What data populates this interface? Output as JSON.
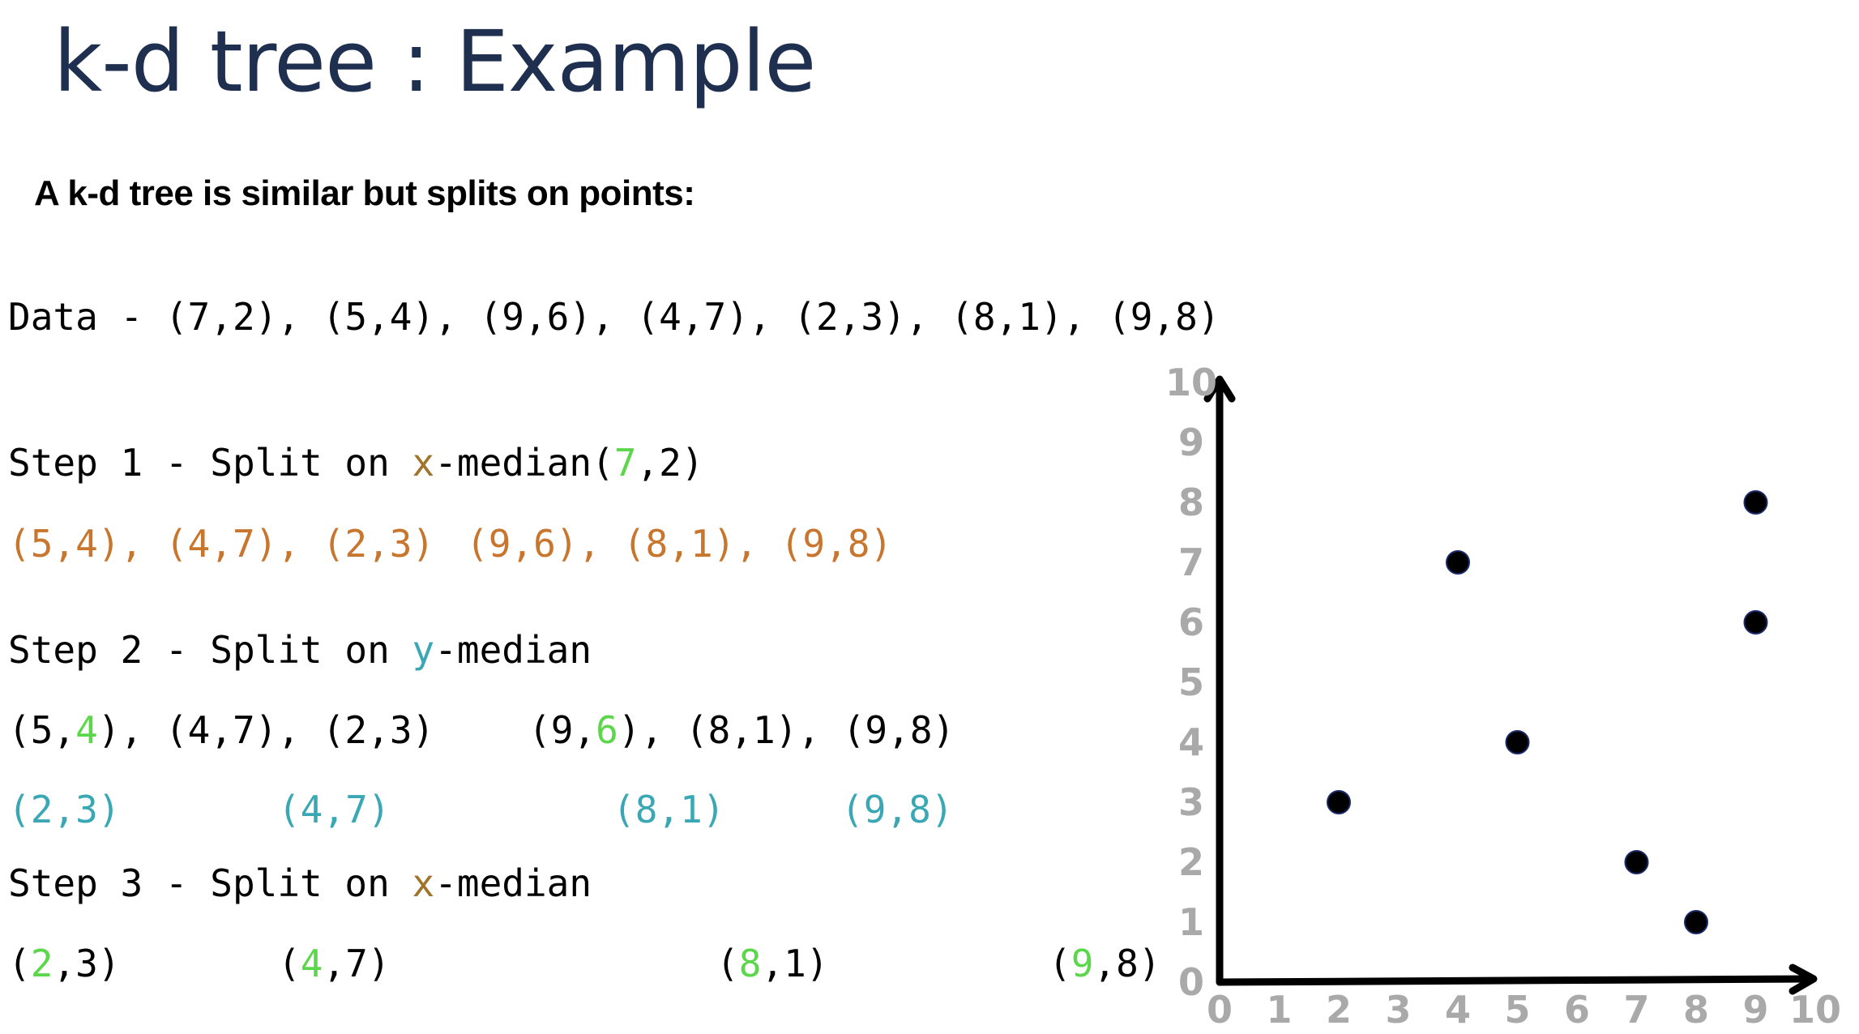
{
  "title": "k-d tree : Example",
  "subtitle": "A k-d tree is similar but splits on points:",
  "data_line": "Data - (7,2), (5,4), (9,6), (4,7), (2,3), (8,1), (9,8)",
  "step1": {
    "prefix": "Step 1 - Split on ",
    "axis": "x",
    "suffix": "-median",
    "median_open": "(",
    "median_key": "7",
    "median_rest": ",2)",
    "left_group": "(5,4), (4,7), (2,3)",
    "right_group": "(9,6), (8,1), (9,8)"
  },
  "step2": {
    "prefix": "Step 2 - Split on ",
    "axis": "y",
    "suffix": "-median",
    "left_open": "(5,",
    "left_key": "4",
    "left_rest": "), (4,7), (2,3)",
    "right_open": "(9,",
    "right_key": "6",
    "right_rest": "), (8,1), (9,8)",
    "leaves": [
      "(2,3)",
      "(4,7)",
      "(8,1)",
      "(9,8)"
    ]
  },
  "step3": {
    "prefix": "Step 3 - Split on ",
    "axis": "x",
    "suffix": "-median",
    "nodes": [
      {
        "open": "(",
        "key": "2",
        "rest": ",3)"
      },
      {
        "open": "(",
        "key": "4",
        "rest": ",7)"
      },
      {
        "open": "(",
        "key": "8",
        "rest": ",1)"
      },
      {
        "open": "(",
        "key": "9",
        "rest": ",8)"
      }
    ]
  },
  "colors": {
    "title": "#1f2f4f",
    "orange": "#c8762e",
    "axis_brown": "#a0742a",
    "teal": "#3aa8b4",
    "green": "#5cd64a",
    "tick_gray": "#a9a9a9"
  },
  "chart_data": {
    "type": "scatter",
    "x_ticks": [
      "0",
      "1",
      "2",
      "3",
      "4",
      "5",
      "6",
      "7",
      "8",
      "9",
      "10"
    ],
    "y_ticks": [
      "0",
      "1",
      "2",
      "3",
      "4",
      "5",
      "6",
      "7",
      "8",
      "9",
      "10"
    ],
    "xlim": [
      0,
      10
    ],
    "ylim": [
      0,
      10
    ],
    "points": [
      {
        "x": 7,
        "y": 2
      },
      {
        "x": 5,
        "y": 4
      },
      {
        "x": 9,
        "y": 6
      },
      {
        "x": 4,
        "y": 7
      },
      {
        "x": 2,
        "y": 3
      },
      {
        "x": 8,
        "y": 1
      },
      {
        "x": 9,
        "y": 8
      }
    ],
    "grid": false
  }
}
